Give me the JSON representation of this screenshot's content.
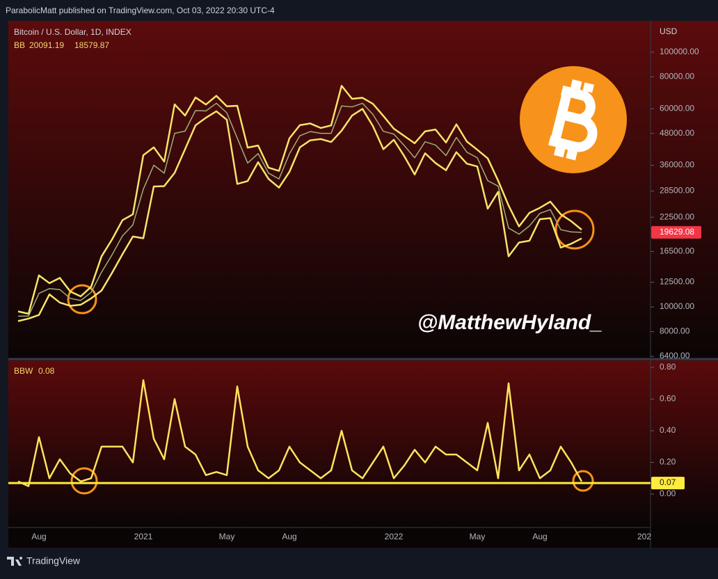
{
  "header": {
    "text": "ParabolicMatt published on TradingView.com, Oct 03, 2022 20:30 UTC-4"
  },
  "footer": {
    "brand": "TradingView"
  },
  "watermark": "@MatthewHyland_",
  "chart_data": [
    {
      "type": "line",
      "title": "Bitcoin / U.S. Dollar, 1D, INDEX",
      "y_unit": "USD",
      "log_scale": true,
      "legend_label": "BB",
      "ylim": [
        6280,
        132700
      ],
      "yticks": [
        {
          "value": 100000,
          "label": "100000.00"
        },
        {
          "value": 80000,
          "label": "80000.00"
        },
        {
          "value": 60000,
          "label": "60000.00"
        },
        {
          "value": 48000,
          "label": "48000.00"
        },
        {
          "value": 36000,
          "label": "36000.00"
        },
        {
          "value": 28500,
          "label": "28500.00"
        },
        {
          "value": 22500,
          "label": "22500.00"
        },
        {
          "value": 16500,
          "label": "16500.00"
        },
        {
          "value": 12500,
          "label": "12500.00"
        },
        {
          "value": 10000,
          "label": "10000.00"
        },
        {
          "value": 8000,
          "label": "8000.00"
        },
        {
          "value": 6400,
          "label": "6400.00"
        }
      ],
      "series": [
        {
          "color": "#9bb07a",
          "values": [
            9200,
            9200,
            11300,
            11800,
            11700,
            10800,
            10600,
            11400,
            13700,
            16000,
            19000,
            21000,
            29000,
            36000,
            33500,
            48000,
            49000,
            59000,
            58800,
            63000,
            57800,
            46000,
            36700,
            40000,
            33500,
            31800,
            39900,
            47000,
            48800,
            48000,
            48000,
            61500,
            61000,
            63000,
            57000,
            48900,
            47700,
            43000,
            38500,
            44500,
            43200,
            39300,
            46300,
            40500,
            38500,
            31300,
            29800,
            20400,
            19300,
            20800,
            23300,
            24100,
            20100,
            19700,
            19629.08,
            null,
            null,
            null,
            null,
            null,
            null
          ]
        },
        {
          "color": "#f7e46a",
          "values": [
            9600,
            9400,
            13300,
            12400,
            13000,
            11500,
            11000,
            12000,
            15800,
            18400,
            21900,
            23100,
            39400,
            42300,
            37200,
            62400,
            56400,
            66400,
            62300,
            67400,
            61300,
            61600,
            42200,
            43000,
            35200,
            34200,
            45900,
            51700,
            52500,
            50400,
            51600,
            73800,
            65600,
            66200,
            62700,
            56200,
            50100,
            46900,
            43900,
            48900,
            49700,
            44200,
            52100,
            44600,
            41400,
            38300,
            31300,
            25000,
            20700,
            23400,
            24500,
            25900,
            23100,
            21700,
            20091.19,
            null,
            null,
            null,
            null,
            null,
            null
          ]
        },
        {
          "color": "#f7e46a",
          "values": [
            8800,
            9000,
            9300,
            11200,
            10400,
            10100,
            10200,
            10800,
            11600,
            13600,
            16100,
            18900,
            18600,
            29700,
            29800,
            33600,
            41600,
            51600,
            55300,
            58600,
            54300,
            30400,
            31200,
            37000,
            31800,
            29400,
            33900,
            42300,
            45100,
            45600,
            44400,
            49200,
            56400,
            59900,
            51300,
            41600,
            45300,
            39100,
            33100,
            40100,
            36700,
            34400,
            40500,
            36500,
            35600,
            24300,
            28300,
            15800,
            17900,
            18200,
            22100,
            22300,
            17100,
            17700,
            18579.87,
            null,
            null,
            null,
            null,
            null,
            null
          ]
        }
      ]
    },
    {
      "type": "line",
      "title": "BBW",
      "categories": [
        null,
        null,
        "Aug",
        null,
        null,
        null,
        null,
        null,
        null,
        null,
        null,
        null,
        "2021",
        null,
        null,
        null,
        null,
        null,
        null,
        null,
        "May",
        null,
        null,
        null,
        null,
        null,
        "Aug",
        null,
        null,
        null,
        null,
        null,
        null,
        null,
        null,
        null,
        "2022",
        null,
        null,
        null,
        null,
        null,
        null,
        null,
        "May",
        null,
        null,
        null,
        null,
        null,
        "Aug",
        null,
        null,
        null,
        null,
        null,
        null,
        null,
        null,
        null,
        "202"
      ],
      "ylim": [
        -0.211,
        0.844
      ],
      "yticks": [
        {
          "value": 0.8,
          "label": "0.80"
        },
        {
          "value": 0.6,
          "label": "0.60"
        },
        {
          "value": 0.4,
          "label": "0.40"
        },
        {
          "value": 0.2,
          "label": "0.20"
        },
        {
          "value": 0,
          "label": "0.00"
        }
      ],
      "hline": {
        "value": 0.07,
        "color": "#ffeb3b"
      },
      "series": [
        {
          "color": "#ffe45c",
          "values": [
            0.08,
            0.05,
            0.36,
            0.1,
            0.22,
            0.13,
            0.08,
            0.1,
            0.3,
            0.3,
            0.3,
            0.2,
            0.72,
            0.35,
            0.22,
            0.6,
            0.3,
            0.25,
            0.12,
            0.14,
            0.12,
            0.68,
            0.3,
            0.15,
            0.1,
            0.15,
            0.3,
            0.2,
            0.15,
            0.1,
            0.15,
            0.4,
            0.15,
            0.1,
            0.2,
            0.3,
            0.1,
            0.18,
            0.28,
            0.2,
            0.3,
            0.25,
            0.25,
            0.2,
            0.15,
            0.45,
            0.1,
            0.7,
            0.15,
            0.25,
            0.1,
            0.15,
            0.3,
            0.2,
            0.08,
            null,
            null,
            null,
            null,
            null,
            null
          ]
        }
      ]
    }
  ]
}
